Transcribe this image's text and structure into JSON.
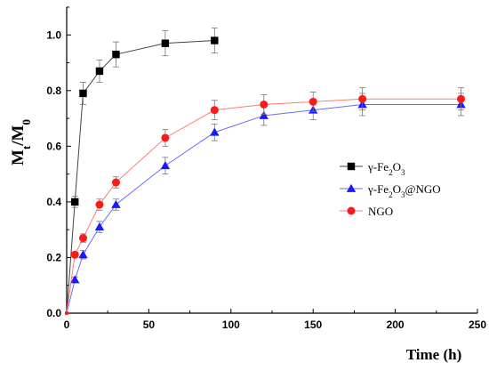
{
  "chart_data": {
    "type": "line",
    "title": "",
    "xlabel": "Time (h)",
    "ylabel": {
      "main": "M",
      "sub1": "t",
      "sep": "/M",
      "sub2": "0"
    },
    "xlim": [
      0,
      250
    ],
    "ylim": [
      0,
      1.1
    ],
    "x_ticks": [
      0,
      50,
      100,
      150,
      200,
      250
    ],
    "y_ticks": [
      0.0,
      0.2,
      0.4,
      0.6,
      0.8,
      1.0
    ],
    "y_tick_labels": [
      "0.0",
      "0.2",
      "0.4",
      "0.6",
      "0.8",
      "1.0"
    ],
    "grid": false,
    "legend_position": "right",
    "series": [
      {
        "name": "γ-Fe2O3",
        "legend": [
          {
            "t": "γ-Fe"
          },
          {
            "t": "2",
            "sub": true
          },
          {
            "t": "O"
          },
          {
            "t": "3",
            "sub": true
          }
        ],
        "marker": "square",
        "color": "#000000",
        "line_color": "#444444",
        "x": [
          0,
          5,
          10,
          20,
          30,
          60,
          90
        ],
        "y": [
          0,
          0.4,
          0.79,
          0.87,
          0.93,
          0.97,
          0.98
        ],
        "err": [
          0,
          0.02,
          0.04,
          0.04,
          0.045,
          0.045,
          0.045
        ]
      },
      {
        "name": "γ-Fe2O3@NGO",
        "legend": [
          {
            "t": "γ-Fe"
          },
          {
            "t": "2",
            "sub": true
          },
          {
            "t": "O"
          },
          {
            "t": "3",
            "sub": true
          },
          {
            "t": "@NGO"
          }
        ],
        "marker": "triangle",
        "color": "#1a1aff",
        "line_color": "#6a6aff",
        "x": [
          0,
          5,
          10,
          20,
          30,
          60,
          90,
          120,
          150,
          180,
          240
        ],
        "y": [
          0,
          0.12,
          0.21,
          0.31,
          0.39,
          0.53,
          0.65,
          0.71,
          0.73,
          0.75,
          0.75
        ],
        "err": [
          0,
          0.01,
          0.015,
          0.02,
          0.02,
          0.03,
          0.03,
          0.035,
          0.035,
          0.04,
          0.04
        ]
      },
      {
        "name": "NGO",
        "legend": [
          {
            "t": "NGO"
          }
        ],
        "marker": "circle",
        "color": "#ff1a1a",
        "line_color": "#ff7a7a",
        "x": [
          0,
          5,
          10,
          20,
          30,
          60,
          90,
          120,
          150,
          180,
          240
        ],
        "y": [
          0,
          0.21,
          0.27,
          0.39,
          0.47,
          0.63,
          0.73,
          0.75,
          0.76,
          0.77,
          0.77
        ],
        "err": [
          0,
          0.01,
          0.015,
          0.02,
          0.02,
          0.03,
          0.035,
          0.035,
          0.035,
          0.04,
          0.04
        ]
      }
    ]
  }
}
